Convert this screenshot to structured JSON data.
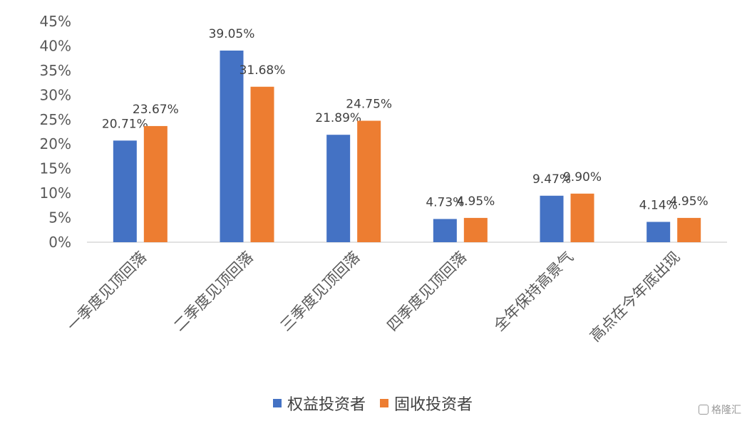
{
  "chart_data": {
    "type": "bar",
    "categories": [
      "一季度见顶回落",
      "二季度见顶回落",
      "三季度见顶回落",
      "四季度见顶回落",
      "全年保持高景气",
      "高点在今年底出现"
    ],
    "series": [
      {
        "name": "权益投资者",
        "values": [
          20.71,
          39.05,
          21.89,
          4.73,
          9.47,
          4.14
        ],
        "labels": [
          "20.71%",
          "39.05%",
          "21.89%",
          "4.73%",
          "9.47%",
          "4.14%"
        ],
        "color": "#4472C4"
      },
      {
        "name": "固收投资者",
        "values": [
          23.67,
          31.68,
          24.75,
          4.95,
          9.9,
          4.95
        ],
        "labels": [
          "23.67%",
          "31.68%",
          "24.75%",
          "4.95%",
          "9.90%",
          "4.95%"
        ],
        "color": "#ED7D31"
      }
    ],
    "yticks": [
      "0%",
      "5%",
      "10%",
      "15%",
      "20%",
      "25%",
      "30%",
      "35%",
      "40%",
      "45%"
    ],
    "ylim": [
      0,
      45
    ],
    "legend_position": "bottom",
    "grid": false
  },
  "watermark": {
    "text": "格隆汇",
    "icon": "glh-logo-icon"
  }
}
